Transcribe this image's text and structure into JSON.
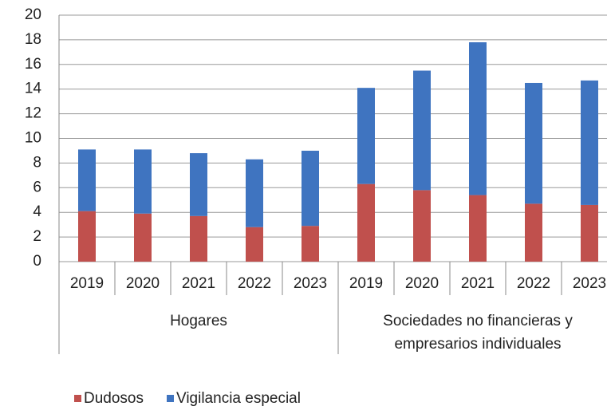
{
  "chart_data": {
    "type": "stacked-bar",
    "categories": [
      "2019",
      "2020",
      "2021",
      "2022",
      "2023",
      "2019",
      "2020",
      "2021",
      "2022",
      "2023"
    ],
    "groups": [
      [
        "Hogares"
      ],
      [
        "Sociedades no financieras y",
        "empresarios individuales"
      ]
    ],
    "series": [
      {
        "name": "Dudosos",
        "color": "#c0504d",
        "values": [
          4.1,
          3.9,
          3.7,
          2.8,
          2.9,
          6.3,
          5.8,
          5.4,
          4.7,
          4.6
        ]
      },
      {
        "name": "Vigilancia especial",
        "color": "#3f74c0",
        "values": [
          5.0,
          5.2,
          5.1,
          5.5,
          6.1,
          7.8,
          9.7,
          12.4,
          9.8,
          10.1
        ]
      }
    ],
    "ylim": [
      0,
      20
    ],
    "yticks": [
      0,
      2,
      4,
      6,
      8,
      10,
      12,
      14,
      16,
      18,
      20
    ],
    "grid": true
  }
}
